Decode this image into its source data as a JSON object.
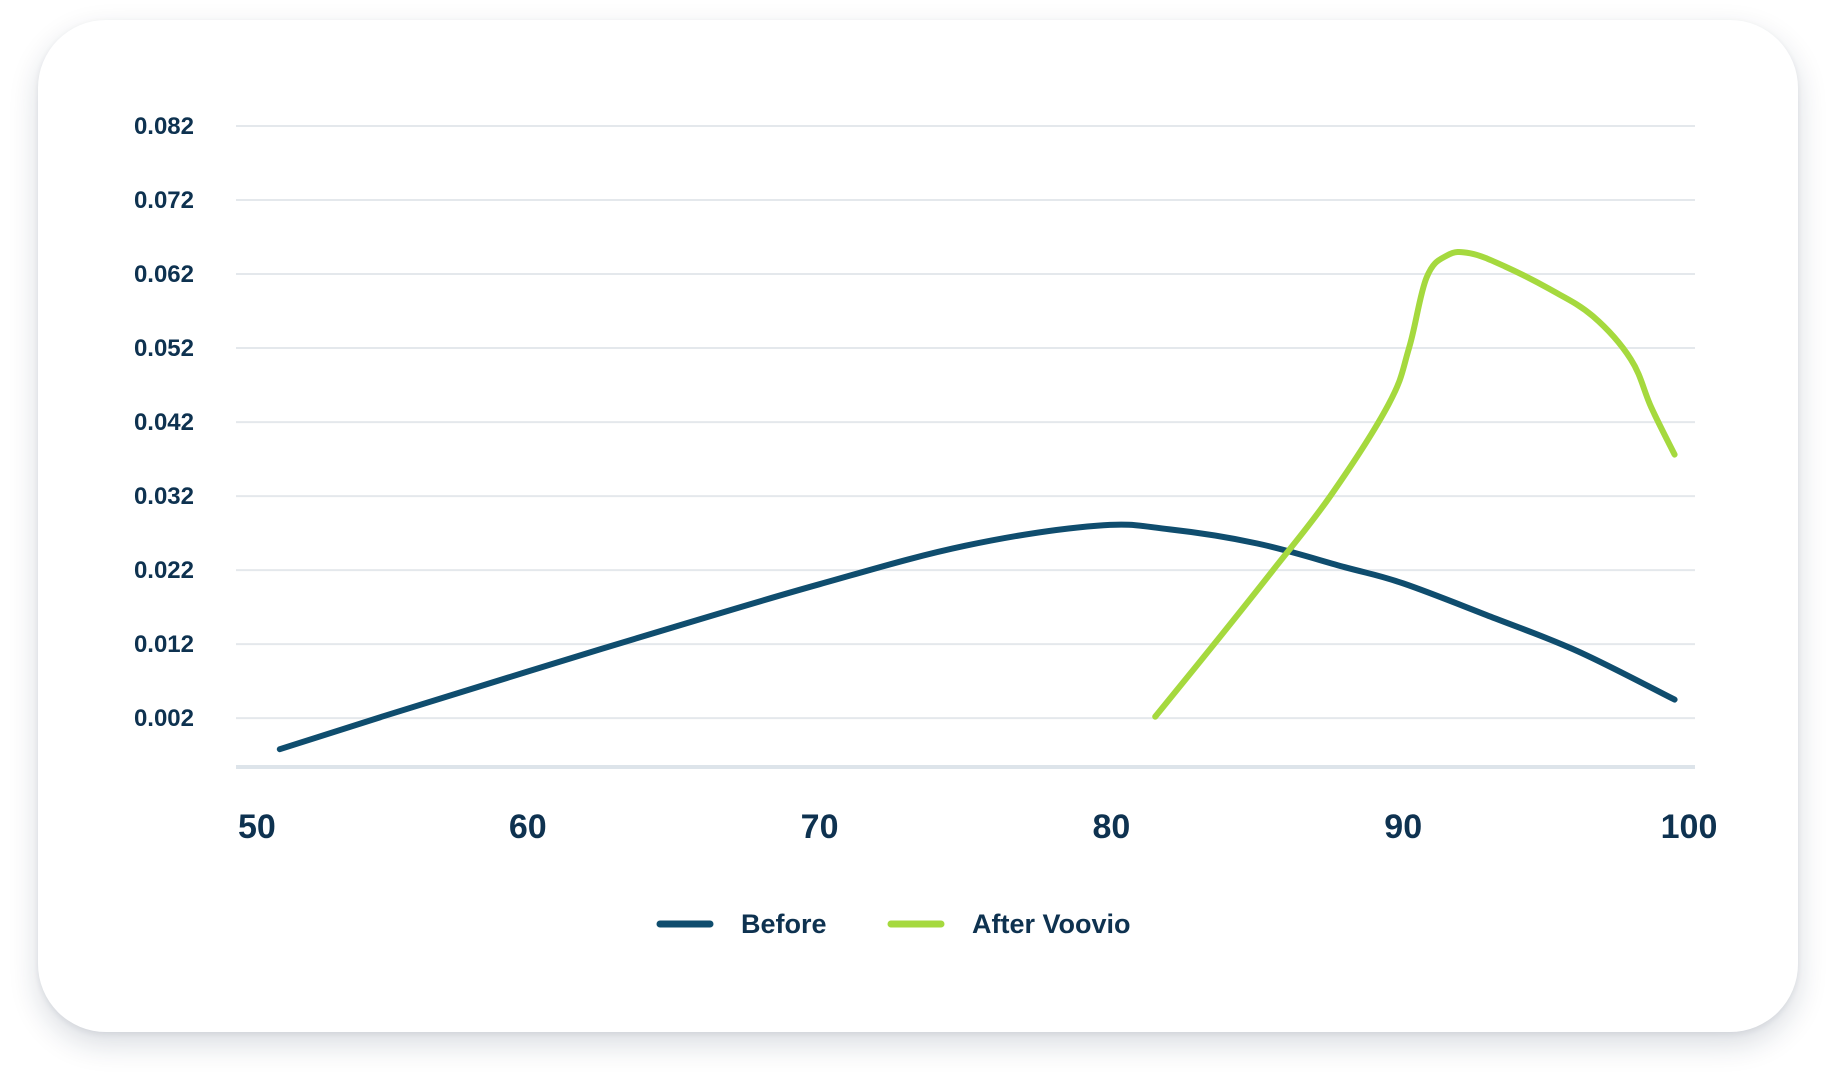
{
  "chart_data": {
    "type": "line",
    "title": "",
    "xlabel": "",
    "ylabel": "",
    "xlim": [
      50,
      100
    ],
    "ylim": [
      -0.0046,
      0.082
    ],
    "x_ticks": [
      "50",
      "60",
      "70",
      "80",
      "90",
      "100"
    ],
    "y_ticks": [
      "0.082",
      "0.072",
      "0.062",
      "0.052",
      "0.042",
      "0.032",
      "0.022",
      "0.012",
      "0.002"
    ],
    "grid": true,
    "legend_placement": "bottom-center",
    "series": [
      {
        "name": "Before",
        "color": "#0f4d6e",
        "points": [
          [
            51.5,
            -0.0022
          ],
          [
            55,
            0.0022
          ],
          [
            60,
            0.0083
          ],
          [
            65,
            0.0143
          ],
          [
            70,
            0.0201
          ],
          [
            75,
            0.0253
          ],
          [
            79.5,
            0.028
          ],
          [
            82,
            0.0275
          ],
          [
            85,
            0.0256
          ],
          [
            88,
            0.0224
          ],
          [
            90,
            0.0202
          ],
          [
            93,
            0.0157
          ],
          [
            96,
            0.011
          ],
          [
            99.3,
            0.0045
          ]
        ]
      },
      {
        "name": "After Voovio",
        "color": "#a5d93e",
        "points": [
          [
            81.5,
            0.0022
          ],
          [
            83.5,
            0.0119
          ],
          [
            85.5,
            0.0218
          ],
          [
            87.5,
            0.032
          ],
          [
            89.5,
            0.0444
          ],
          [
            90.2,
            0.052
          ],
          [
            90.8,
            0.0615
          ],
          [
            91.5,
            0.0645
          ],
          [
            92.3,
            0.0648
          ],
          [
            93.5,
            0.063
          ],
          [
            95,
            0.06
          ],
          [
            96.5,
            0.0563
          ],
          [
            97.8,
            0.0505
          ],
          [
            98.5,
            0.044
          ],
          [
            99.3,
            0.0376
          ]
        ]
      }
    ]
  }
}
